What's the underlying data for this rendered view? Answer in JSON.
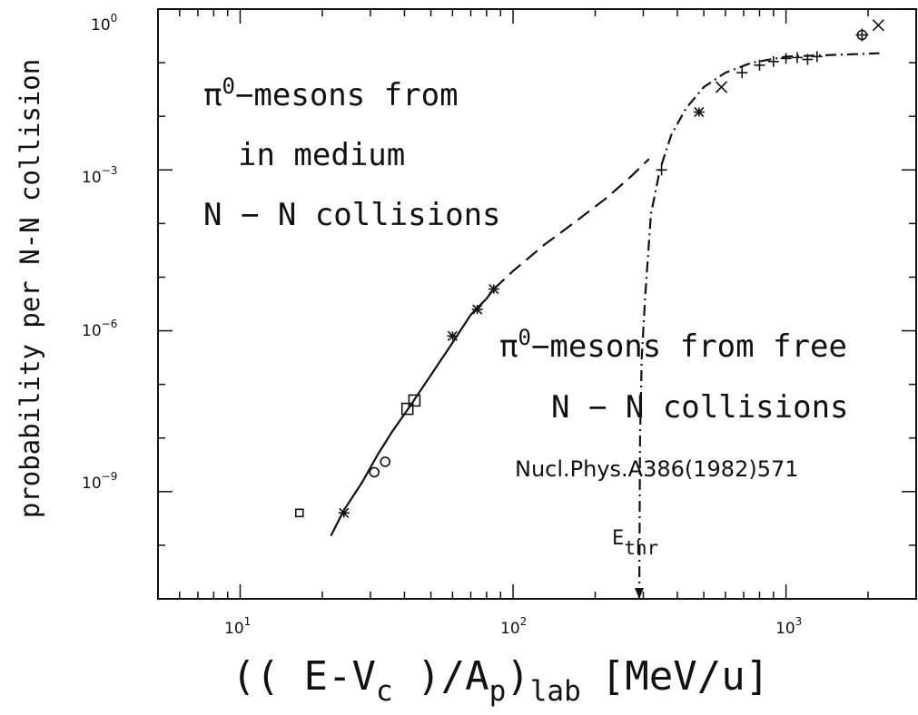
{
  "chart_data": {
    "type": "scatter",
    "title": "",
    "xlabel": {
      "open": "(( E-V",
      "c_sub": "c",
      "mid": " )/A",
      "p_sub": "p",
      "close": ")",
      "lab_sub": "lab",
      "units": "[MeV/u]"
    },
    "ylabel": "probability per N-N collision",
    "xscale": "log",
    "yscale": "log",
    "xlim": [
      5,
      3000
    ],
    "ylim": [
      1e-11,
      1
    ],
    "x_ticks": [
      {
        "value": 10,
        "base": "10",
        "exp": "1"
      },
      {
        "value": 100,
        "base": "10",
        "exp": "2"
      },
      {
        "value": 1000,
        "base": "10",
        "exp": "3"
      }
    ],
    "y_ticks": [
      {
        "value": 1,
        "base": "10",
        "exp": "0"
      },
      {
        "value": 0.001,
        "base": "10",
        "exp": "−3"
      },
      {
        "value": 1e-06,
        "base": "10",
        "exp": "−6"
      },
      {
        "value": 1e-09,
        "base": "10",
        "exp": "−9"
      }
    ],
    "annotations": {
      "medium": {
        "pi": "π",
        "zero": "0",
        "line1": "−mesons from",
        "line2": "in medium",
        "line3": "N − N collisions"
      },
      "free": {
        "pi": "π",
        "zero": "0",
        "line1": "−mesons from free",
        "line2": "N − N collisions",
        "reference": "Nucl.Phys.A386(1982)571"
      },
      "threshold": {
        "E": "E",
        "sub": "thr",
        "x": 290
      }
    },
    "series": [
      {
        "style": "solid",
        "x": [
          21.5,
          24,
          28,
          32,
          36,
          42,
          50,
          60,
          70,
          80,
          85
        ],
        "y": [
          1.5e-10,
          4.5e-10,
          1.5e-09,
          5e-09,
          1.3e-08,
          4e-08,
          1.5e-07,
          6e-07,
          2e-06,
          4e-06,
          6e-06
        ]
      },
      {
        "style": "dashed",
        "x": [
          85,
          100,
          130,
          170,
          220,
          270,
          315
        ],
        "y": [
          6e-06,
          1.3e-05,
          4e-05,
          0.00011,
          0.0003,
          0.00075,
          0.0016
        ]
      },
      {
        "style": "dash-dot",
        "x": [
          290,
          292,
          296,
          305,
          320,
          345,
          380,
          430,
          500,
          600,
          750,
          1000,
          1500,
          2200
        ],
        "y": [
          1e-11,
          1e-08,
          3e-07,
          4.5e-06,
          0.00015,
          0.001,
          0.0045,
          0.014,
          0.035,
          0.065,
          0.1,
          0.13,
          0.14,
          0.15
        ]
      }
    ],
    "points": [
      {
        "x": 16.5,
        "y": 4e-10,
        "marker": "small-box"
      },
      {
        "x": 24,
        "y": 4e-10,
        "marker": "star"
      },
      {
        "x": 31,
        "y": 2.3e-09,
        "marker": "circle"
      },
      {
        "x": 34,
        "y": 3.6e-09,
        "marker": "circle"
      },
      {
        "x": 41,
        "y": 3.5e-08,
        "marker": "square"
      },
      {
        "x": 43.5,
        "y": 5e-08,
        "marker": "square"
      },
      {
        "x": 60,
        "y": 8e-07,
        "marker": "star"
      },
      {
        "x": 74,
        "y": 2.5e-06,
        "marker": "star"
      },
      {
        "x": 85,
        "y": 6e-06,
        "marker": "star"
      },
      {
        "x": 350,
        "y": 0.001,
        "marker": "plus"
      },
      {
        "x": 480,
        "y": 0.012,
        "marker": "star"
      },
      {
        "x": 580,
        "y": 0.035,
        "marker": "cross"
      },
      {
        "x": 690,
        "y": 0.065,
        "marker": "plus"
      },
      {
        "x": 800,
        "y": 0.09,
        "marker": "plus"
      },
      {
        "x": 900,
        "y": 0.105,
        "marker": "plus"
      },
      {
        "x": 1000,
        "y": 0.12,
        "marker": "plus"
      },
      {
        "x": 1100,
        "y": 0.125,
        "marker": "plus"
      },
      {
        "x": 1200,
        "y": 0.115,
        "marker": "plus"
      },
      {
        "x": 1300,
        "y": 0.13,
        "marker": "plus"
      },
      {
        "x": 1900,
        "y": 0.33,
        "marker": "circle-plus"
      },
      {
        "x": 2180,
        "y": 0.5,
        "marker": "cross"
      }
    ]
  }
}
